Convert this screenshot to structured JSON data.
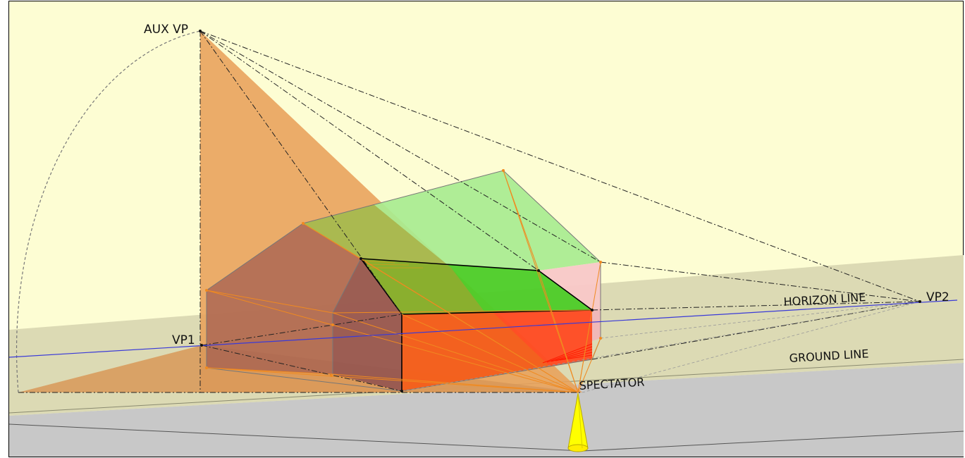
{
  "labels": {
    "aux_vp": "AUX VP",
    "vp1": "VP1",
    "vp2": "VP2",
    "horizon_line": "HORIZON LINE",
    "ground_line": "GROUND LINE",
    "spectator": "SPECTATOR"
  },
  "colors": {
    "sky": "#fdfdd3",
    "picture_plane": "#dcdab4",
    "ground": "#c8c8c8",
    "horizon_line": "#3a3ad8",
    "construction_triangle": "#e8a05a",
    "house_wall_shadow": "#a05a50",
    "roof_green": "#4ccc28",
    "roof_green_light": "#a8ec90",
    "wall_red": "#ff4a22",
    "wall_pink": "#f8c8c8",
    "projector_orange": "#f08a20",
    "spectator_cone": "#ffff00"
  },
  "icons": {
    "spectator_marker": "cone-icon"
  }
}
